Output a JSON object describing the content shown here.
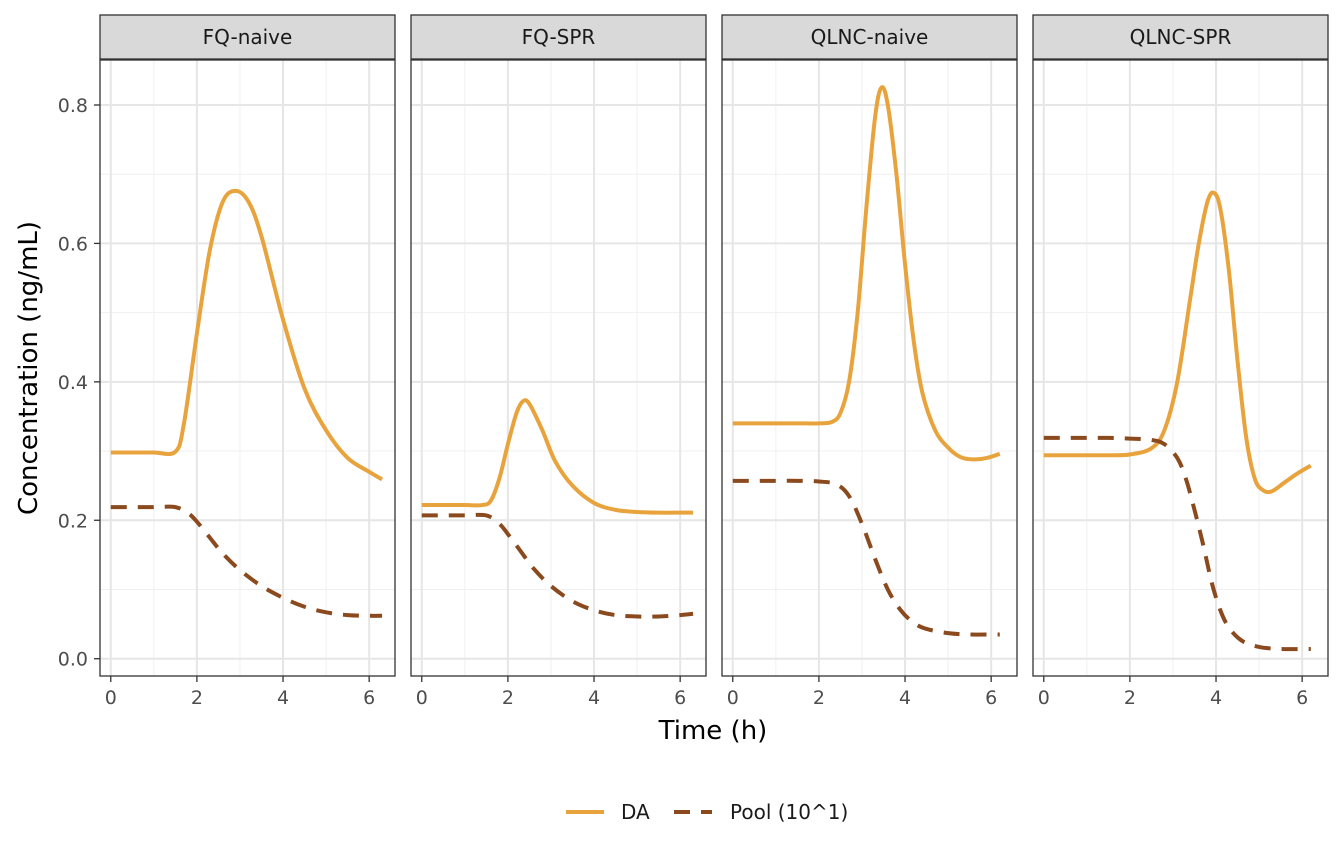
{
  "chart_data": {
    "type": "line",
    "xlabel": "Time (h)",
    "ylabel": "Concentration (ng/mL)",
    "xlim": [
      -0.25,
      6.6
    ],
    "ylim": [
      -0.025,
      0.865
    ],
    "x_ticks": [
      0,
      2,
      4,
      6
    ],
    "y_ticks": [
      0.0,
      0.2,
      0.4,
      0.6,
      0.8
    ],
    "y_tick_labels": [
      "0.0",
      "0.2",
      "0.4",
      "0.6",
      "0.8"
    ],
    "grid": true,
    "legend_position": "bottom",
    "legend": [
      {
        "name": "DA",
        "color": "#E8A33D",
        "linetype": "solid"
      },
      {
        "name": "Pool (10^1)",
        "color": "#8B4A1E",
        "linetype": "dashed"
      }
    ],
    "panels": [
      {
        "label": "FQ-naive",
        "series": [
          {
            "name": "DA",
            "x": [
              0,
              0.5,
              1,
              1.5,
              1.7,
              2.0,
              2.3,
              2.6,
              2.9,
              3.2,
              3.5,
              4.0,
              4.5,
              5.0,
              5.5,
              6.0,
              6.3
            ],
            "y": [
              0.298,
              0.298,
              0.298,
              0.299,
              0.34,
              0.47,
              0.59,
              0.66,
              0.676,
              0.66,
              0.61,
              0.49,
              0.39,
              0.33,
              0.29,
              0.27,
              0.259
            ]
          },
          {
            "name": "Pool (10^1)",
            "x": [
              0,
              0.5,
              1,
              1.5,
              1.8,
              2.0,
              2.3,
              2.6,
              3.0,
              3.5,
              4.0,
              4.5,
              5.0,
              5.5,
              6.0,
              6.3
            ],
            "y": [
              0.219,
              0.219,
              0.219,
              0.219,
              0.21,
              0.198,
              0.175,
              0.152,
              0.128,
              0.105,
              0.088,
              0.075,
              0.067,
              0.063,
              0.062,
              0.062
            ]
          }
        ]
      },
      {
        "label": "FQ-SPR",
        "series": [
          {
            "name": "DA",
            "x": [
              0,
              0.5,
              1,
              1.4,
              1.6,
              1.8,
              2.0,
              2.2,
              2.35,
              2.5,
              2.8,
              3.1,
              3.5,
              4.0,
              4.5,
              5.0,
              5.5,
              6.0,
              6.3
            ],
            "y": [
              0.222,
              0.222,
              0.222,
              0.222,
              0.228,
              0.26,
              0.31,
              0.355,
              0.372,
              0.368,
              0.33,
              0.285,
              0.25,
              0.225,
              0.215,
              0.212,
              0.211,
              0.211,
              0.211
            ]
          },
          {
            "name": "Pool (10^1)",
            "x": [
              0,
              0.5,
              1,
              1.5,
              1.8,
              2.0,
              2.3,
              2.6,
              3.0,
              3.5,
              4.0,
              4.5,
              5.0,
              5.5,
              6.0,
              6.3
            ],
            "y": [
              0.207,
              0.207,
              0.207,
              0.207,
              0.195,
              0.18,
              0.155,
              0.13,
              0.105,
              0.083,
              0.07,
              0.063,
              0.061,
              0.061,
              0.063,
              0.065
            ]
          }
        ]
      },
      {
        "label": "QLNC-naive",
        "series": [
          {
            "name": "DA",
            "x": [
              0,
              0.5,
              1,
              1.5,
              2.0,
              2.3,
              2.5,
              2.7,
              2.9,
              3.1,
              3.3,
              3.45,
              3.6,
              3.8,
              4.0,
              4.2,
              4.4,
              4.7,
              5.0,
              5.3,
              5.6,
              5.9,
              6.2
            ],
            "y": [
              0.34,
              0.34,
              0.34,
              0.34,
              0.34,
              0.342,
              0.355,
              0.4,
              0.5,
              0.65,
              0.78,
              0.825,
              0.8,
              0.7,
              0.57,
              0.46,
              0.385,
              0.33,
              0.305,
              0.291,
              0.288,
              0.29,
              0.296
            ]
          },
          {
            "name": "Pool (10^1)",
            "x": [
              0,
              0.5,
              1,
              1.5,
              2.0,
              2.4,
              2.7,
              3.0,
              3.3,
              3.6,
              3.9,
              4.2,
              4.5,
              5.0,
              5.5,
              6.0,
              6.2
            ],
            "y": [
              0.257,
              0.257,
              0.257,
              0.257,
              0.256,
              0.252,
              0.235,
              0.195,
              0.145,
              0.1,
              0.07,
              0.052,
              0.043,
              0.037,
              0.035,
              0.035,
              0.035
            ]
          }
        ]
      },
      {
        "label": "QLNC-SPR",
        "series": [
          {
            "name": "DA",
            "x": [
              0,
              0.5,
              1,
              1.5,
              2.0,
              2.5,
              2.8,
              3.1,
              3.4,
              3.6,
              3.8,
              3.95,
              4.1,
              4.3,
              4.5,
              4.7,
              4.9,
              5.1,
              5.3,
              5.6,
              5.9,
              6.2
            ],
            "y": [
              0.294,
              0.294,
              0.294,
              0.294,
              0.295,
              0.304,
              0.33,
              0.4,
              0.52,
              0.6,
              0.66,
              0.673,
              0.65,
              0.56,
              0.43,
              0.32,
              0.26,
              0.243,
              0.242,
              0.255,
              0.268,
              0.279
            ]
          },
          {
            "name": "Pool (10^1)",
            "x": [
              0,
              0.5,
              1,
              1.5,
              2.0,
              2.5,
              2.8,
              3.1,
              3.3,
              3.5,
              3.7,
              3.9,
              4.1,
              4.3,
              4.6,
              5.0,
              5.5,
              6.0,
              6.2
            ],
            "y": [
              0.319,
              0.319,
              0.319,
              0.319,
              0.318,
              0.316,
              0.31,
              0.29,
              0.26,
              0.215,
              0.165,
              0.11,
              0.07,
              0.045,
              0.026,
              0.017,
              0.014,
              0.014,
              0.014
            ]
          }
        ]
      }
    ]
  }
}
